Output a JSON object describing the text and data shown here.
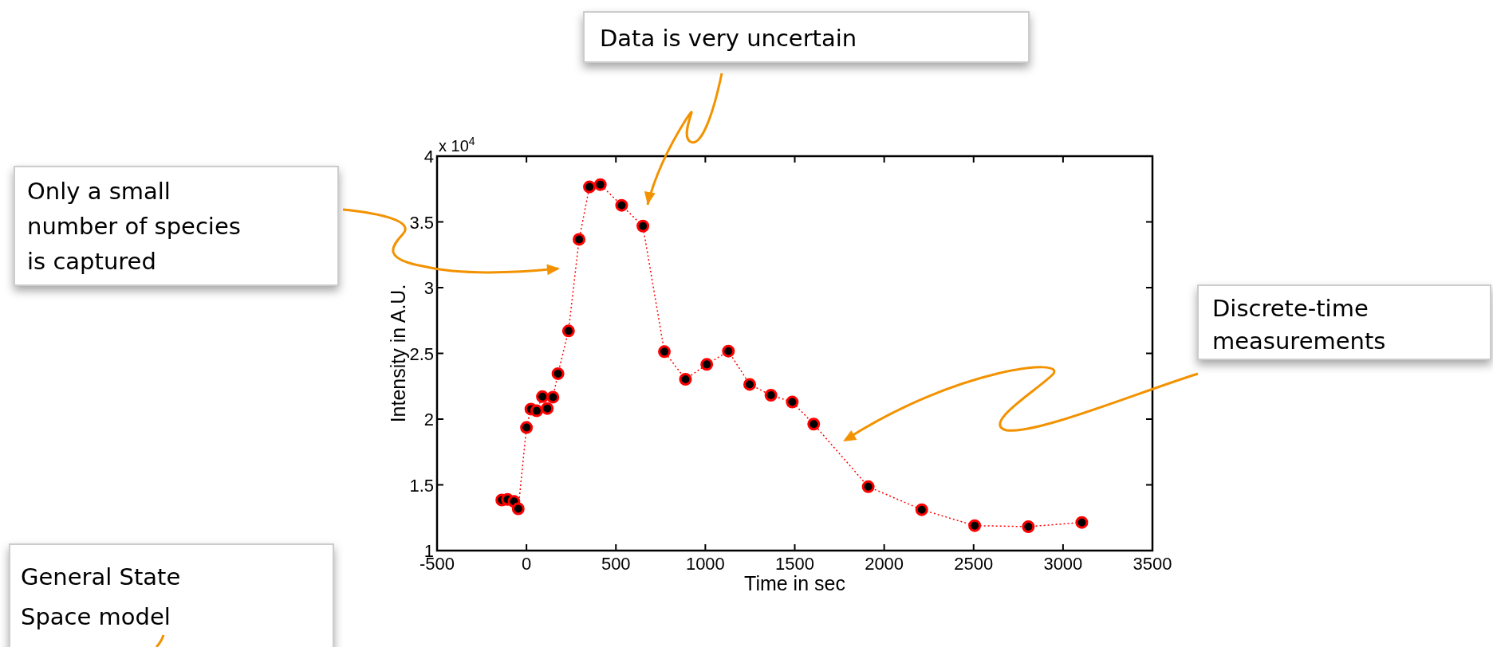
{
  "chart_data": {
    "type": "line",
    "xlabel": "Time in sec",
    "ylabel": "Intensity in A.U.",
    "x": [
      -138,
      -106,
      -70,
      -46,
      0,
      25,
      57,
      89,
      116,
      148,
      176,
      235,
      294,
      352,
      413,
      532,
      651,
      771,
      889,
      1008,
      1129,
      1248,
      1367,
      1486,
      1606,
      1911,
      2210,
      2506,
      2806,
      3105
    ],
    "series": [
      {
        "color": "#ff0000",
        "values": [
          1.385,
          1.389,
          1.374,
          1.318,
          1.936,
          2.076,
          2.063,
          2.171,
          2.081,
          2.167,
          2.346,
          2.671,
          3.367,
          3.766,
          3.784,
          3.626,
          3.468,
          2.513,
          2.303,
          2.416,
          2.517,
          2.264,
          2.182,
          2.13,
          1.962,
          1.486,
          1.311,
          1.19,
          1.182,
          1.214
        ]
      }
    ],
    "xlim": [
      -500,
      3500
    ],
    "xticks": [
      -500,
      0,
      500,
      1000,
      1500,
      2000,
      2500,
      3000,
      3500
    ],
    "ylim": [
      1,
      4
    ],
    "yticks": [
      1,
      1.5,
      2,
      2.5,
      3,
      3.5,
      4
    ],
    "marker": "circle",
    "line_style": "dotted",
    "grid": false,
    "annotations": [
      "x 10$^{4}$",
      "Data is very uncertain",
      "Only a small number of species is captured",
      "Discrete-time measurements",
      "General State Space model"
    ]
  }
}
